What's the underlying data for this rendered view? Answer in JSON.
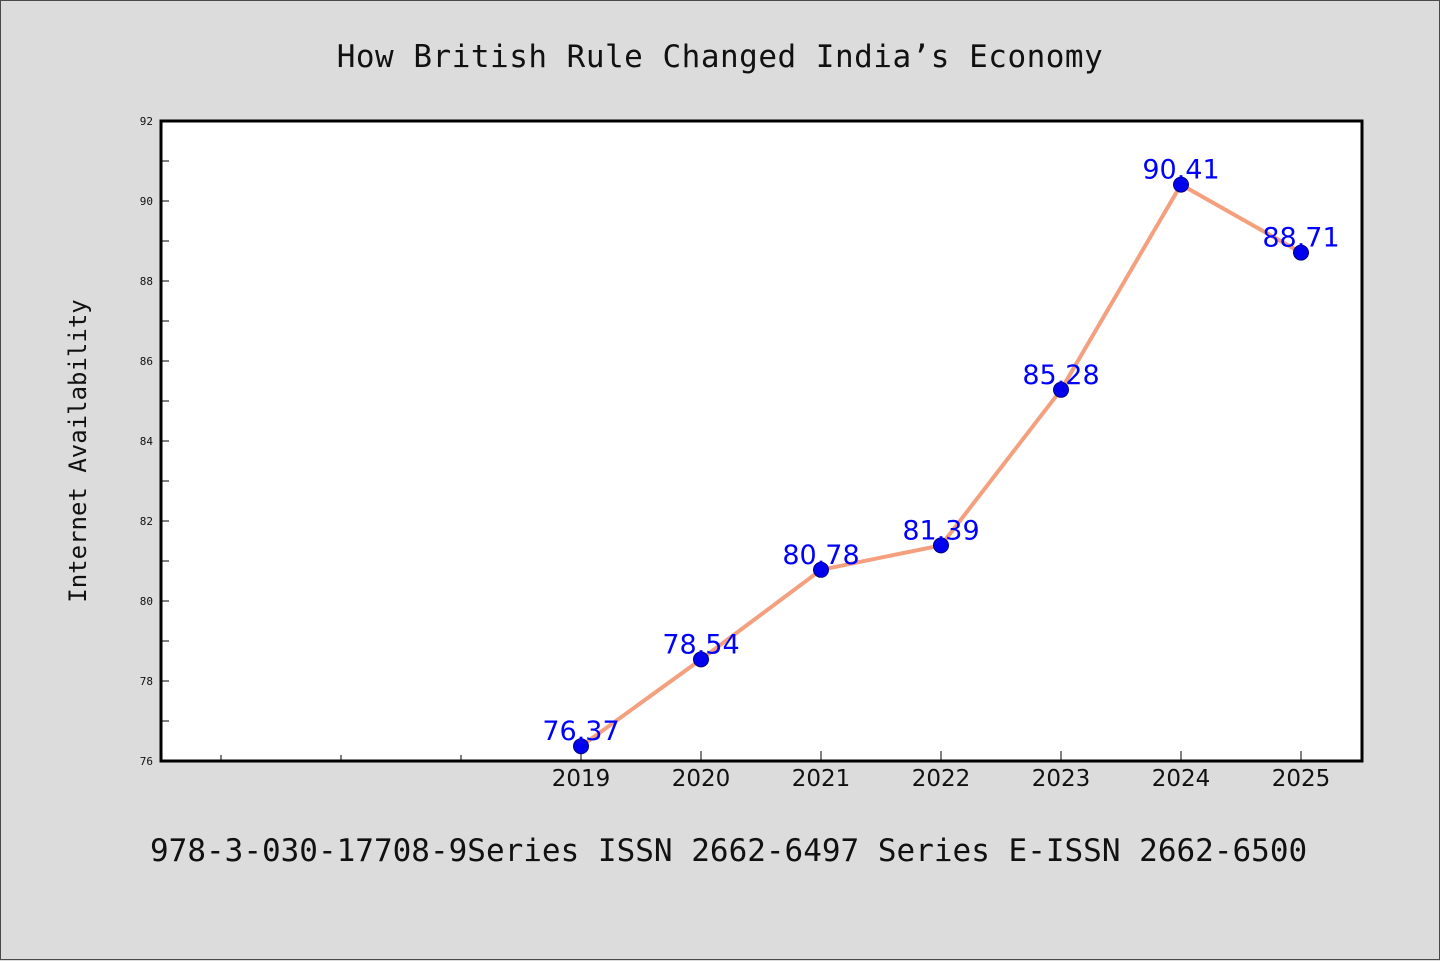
{
  "chart_data": {
    "type": "line",
    "title": "How British Rule Changed India’s Economy",
    "xlabel": "",
    "ylabel": "Internet Availability",
    "categories": [
      "2019",
      "2020",
      "2021",
      "2022",
      "2023",
      "2024",
      "2025"
    ],
    "series": [
      {
        "values": [
          76.37,
          78.54,
          80.78,
          81.39,
          85.28,
          90.41,
          88.71
        ],
        "data_labels": [
          "76.37",
          "78.54",
          "80.78",
          "81.39",
          "85.28",
          "90.41",
          "88.71"
        ]
      }
    ],
    "ylim": [
      76,
      92
    ],
    "yticks": [
      "76",
      "78",
      "80",
      "82",
      "84",
      "86",
      "88",
      "90",
      "92"
    ],
    "grid": false,
    "legend": "none",
    "colors": {
      "line": "#f4a07e",
      "marker": "#0000ee",
      "data_label": "#0000ff",
      "plot_background": "#ffffff",
      "page_background": "#dcdcdc"
    }
  },
  "footer": {
    "text": "978-3-030-17708-9Series ISSN 2662-6497 Series E-ISSN 2662-6500"
  }
}
